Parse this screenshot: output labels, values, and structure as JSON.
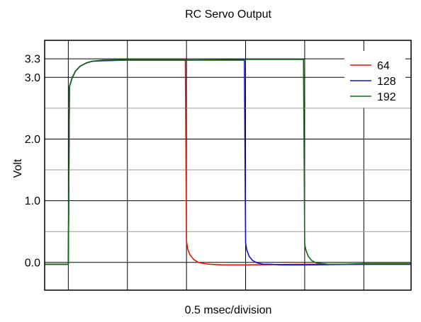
{
  "chart_data": {
    "type": "line",
    "title": "RC Servo Output",
    "xlabel": "0.5 msec/division",
    "ylabel": "Volt",
    "xlim": [
      -0.2,
      2.9
    ],
    "ylim": [
      -0.45,
      3.6
    ],
    "x_gridlines": [
      0,
      0.5,
      1.0,
      1.5,
      2.0,
      2.5
    ],
    "y_ticks": [
      {
        "value": 0.0,
        "label": "0.0"
      },
      {
        "value": 1.0,
        "label": "1.0"
      },
      {
        "value": 2.0,
        "label": "2.0"
      },
      {
        "value": 3.0,
        "label": "3.0"
      },
      {
        "value": 3.3,
        "label": "3.3"
      }
    ],
    "y_minor_gridlines": [
      0.5,
      1.5,
      2.5
    ],
    "grid": true,
    "legend_position": "top-right",
    "series": [
      {
        "name": "64",
        "color": "#e8140c",
        "x": [
          -0.2,
          0.0,
          0.01,
          0.03,
          0.06,
          0.1,
          0.15,
          0.2,
          0.3,
          0.5,
          0.75,
          0.99,
          1.0,
          1.01,
          1.03,
          1.06,
          1.1,
          1.15,
          1.2,
          1.3,
          1.5,
          2.0,
          2.5,
          2.9
        ],
        "y": [
          -0.03,
          -0.03,
          2.85,
          2.98,
          3.1,
          3.18,
          3.23,
          3.26,
          3.28,
          3.29,
          3.29,
          3.29,
          0.35,
          0.22,
          0.12,
          0.05,
          0.0,
          -0.02,
          -0.03,
          -0.04,
          -0.04,
          -0.03,
          -0.03,
          -0.03
        ]
      },
      {
        "name": "128",
        "color": "#1010d8",
        "x": [
          -0.2,
          0.0,
          0.01,
          0.03,
          0.06,
          0.1,
          0.15,
          0.2,
          0.3,
          0.5,
          1.0,
          1.49,
          1.5,
          1.51,
          1.53,
          1.56,
          1.6,
          1.65,
          1.7,
          1.8,
          2.0,
          2.5,
          2.9
        ],
        "y": [
          -0.03,
          -0.03,
          2.85,
          2.98,
          3.1,
          3.18,
          3.23,
          3.26,
          3.27,
          3.28,
          3.28,
          3.28,
          0.32,
          0.2,
          0.1,
          0.03,
          -0.01,
          -0.03,
          -0.03,
          -0.04,
          -0.04,
          -0.03,
          -0.03
        ]
      },
      {
        "name": "192",
        "color": "#0e6b12",
        "x": [
          -0.2,
          0.0,
          0.01,
          0.03,
          0.06,
          0.1,
          0.15,
          0.2,
          0.3,
          0.5,
          1.0,
          1.5,
          1.99,
          2.0,
          2.01,
          2.03,
          2.06,
          2.1,
          2.15,
          2.2,
          2.3,
          2.5,
          2.9
        ],
        "y": [
          -0.03,
          -0.03,
          2.85,
          2.98,
          3.1,
          3.18,
          3.23,
          3.26,
          3.28,
          3.28,
          3.28,
          3.29,
          3.29,
          0.3,
          0.2,
          0.1,
          0.03,
          -0.01,
          -0.02,
          -0.03,
          -0.03,
          -0.02,
          -0.02
        ]
      }
    ]
  }
}
